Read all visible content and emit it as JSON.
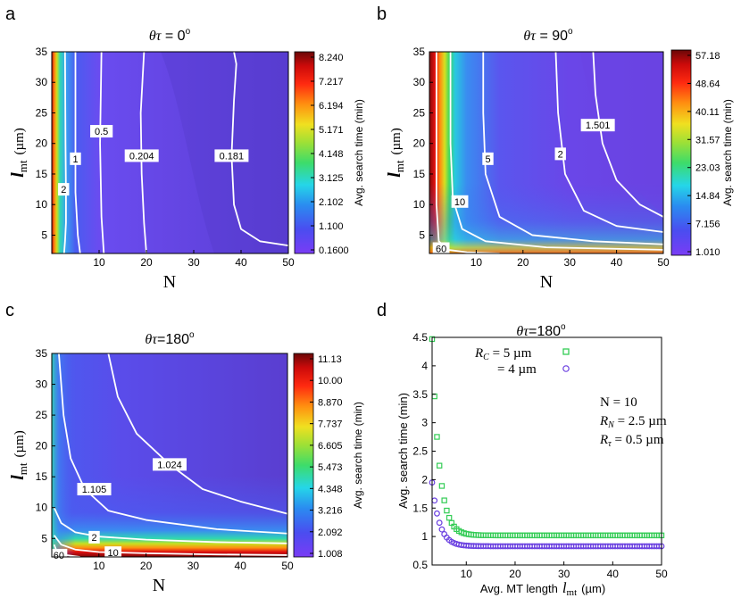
{
  "figure": {
    "panel_letters": [
      "a",
      "b",
      "c",
      "d"
    ]
  },
  "chart_data": [
    {
      "type": "heatmap",
      "panel": "a",
      "title_symbol": "θτ",
      "title_value": " = 0",
      "degree_mark": "o",
      "xlabel": "N",
      "ylabel_symbol": "l",
      "ylabel_sub": "mt",
      "ylabel_unit": "(µm)",
      "xlim": [
        0,
        50
      ],
      "ylim": [
        2,
        35
      ],
      "xticks": [
        "10",
        "20",
        "30",
        "40",
        "50"
      ],
      "yticks": [
        "5",
        "10",
        "15",
        "20",
        "25",
        "30",
        "35"
      ],
      "colorbar_label": "Avg. search time (min)",
      "colorbar_ticks": [
        "8.240",
        "7.217",
        "6.194",
        "5.171",
        "4.148",
        "3.125",
        "2.102",
        "1.100",
        "0.1600"
      ],
      "contours": [
        {
          "label": "2",
          "label_at": [
            2.5,
            12.5
          ],
          "points": [
            [
              2.6,
              2
            ],
            [
              2.8,
              4
            ],
            [
              3,
              7
            ],
            [
              3,
              12
            ],
            [
              2.9,
              20
            ],
            [
              2.8,
              35
            ]
          ]
        },
        {
          "label": "1",
          "label_at": [
            5,
            17.5
          ],
          "points": [
            [
              6,
              2
            ],
            [
              5.5,
              5
            ],
            [
              5,
              12
            ],
            [
              5,
              25
            ],
            [
              5,
              35
            ]
          ]
        },
        {
          "label": "0.5",
          "label_at": [
            10.5,
            22
          ],
          "points": [
            [
              11,
              2
            ],
            [
              10.5,
              8
            ],
            [
              10.2,
              20
            ],
            [
              10.5,
              35
            ]
          ]
        },
        {
          "label": "0.204",
          "label_at": [
            19,
            18
          ],
          "points": [
            [
              20,
              2
            ],
            [
              19.5,
              7
            ],
            [
              19,
              15
            ],
            [
              18.8,
              25
            ],
            [
              19.5,
              35
            ]
          ]
        },
        {
          "label": "0.181",
          "label_at": [
            38,
            18
          ],
          "points": [
            [
              50,
              3.3
            ],
            [
              44,
              4
            ],
            [
              40,
              6
            ],
            [
              38.5,
              10
            ],
            [
              38,
              18
            ],
            [
              38.5,
              27
            ],
            [
              39,
              33
            ],
            [
              38.5,
              35
            ]
          ]
        }
      ]
    },
    {
      "type": "heatmap",
      "panel": "b",
      "title_symbol": "θτ",
      "title_value": " = 90",
      "degree_mark": "o",
      "xlabel": "N",
      "ylabel_symbol": "l",
      "ylabel_sub": "mt",
      "ylabel_unit": "(µm)",
      "xlim": [
        0,
        50
      ],
      "ylim": [
        2,
        35
      ],
      "xticks": [
        "10",
        "20",
        "30",
        "40",
        "50"
      ],
      "yticks": [
        "5",
        "10",
        "15",
        "20",
        "25",
        "30",
        "35"
      ],
      "colorbar_label": "Avg. search time (min)",
      "colorbar_ticks": [
        "57.18",
        "48.64",
        "40.11",
        "31.57",
        "23.03",
        "14.84",
        "7.156",
        "1.010"
      ],
      "contours": [
        {
          "label": "60",
          "label_at": [
            2.5,
            2.8
          ],
          "points": [
            [
              1.5,
              35
            ],
            [
              1.5,
              10
            ],
            [
              2,
              4
            ],
            [
              4,
              2.6
            ],
            [
              8,
              2.2
            ],
            [
              15,
              2
            ]
          ]
        },
        {
          "label": "10",
          "label_at": [
            6.5,
            10.5
          ],
          "points": [
            [
              4.5,
              35
            ],
            [
              4.5,
              20
            ],
            [
              5,
              11
            ],
            [
              7,
              6
            ],
            [
              12,
              4
            ],
            [
              25,
              3
            ],
            [
              50,
              2.6
            ]
          ]
        },
        {
          "label": "5",
          "label_at": [
            12.5,
            17.5
          ],
          "points": [
            [
              11.5,
              35
            ],
            [
              11.5,
              25
            ],
            [
              12,
              15
            ],
            [
              15,
              8
            ],
            [
              22,
              5
            ],
            [
              35,
              4
            ],
            [
              50,
              3.5
            ]
          ]
        },
        {
          "label": "2",
          "label_at": [
            28,
            18.3
          ],
          "points": [
            [
              27,
              35
            ],
            [
              27.5,
              25
            ],
            [
              29,
              15
            ],
            [
              33,
              9
            ],
            [
              40,
              6.5
            ],
            [
              50,
              5.5
            ]
          ]
        },
        {
          "label": "1.501",
          "label_at": [
            36,
            23
          ],
          "points": [
            [
              35,
              35
            ],
            [
              35.5,
              28
            ],
            [
              37,
              20
            ],
            [
              40,
              14
            ],
            [
              45,
              10
            ],
            [
              50,
              8
            ]
          ]
        }
      ]
    },
    {
      "type": "heatmap",
      "panel": "c",
      "title_symbol": "θτ",
      "title_value": "=180",
      "degree_mark": "o",
      "xlabel": "N",
      "ylabel_symbol": "l",
      "ylabel_sub": "mt",
      "ylabel_unit": "(µm)",
      "xlim": [
        0,
        50
      ],
      "ylim": [
        2,
        35
      ],
      "xticks": [
        "10",
        "20",
        "30",
        "40",
        "50"
      ],
      "yticks": [
        "5",
        "10",
        "15",
        "20",
        "25",
        "30",
        "35"
      ],
      "colorbar_label": "Avg. search time (min)",
      "colorbar_ticks": [
        "11.13",
        "10.00",
        "8.870",
        "7.737",
        "6.605",
        "5.473",
        "4.348",
        "3.216",
        "2.092",
        "1.008"
      ],
      "contours": [
        {
          "label": "60",
          "label_at": [
            1.5,
            2.3
          ],
          "points": [
            [
              0.5,
              4
            ],
            [
              1,
              3
            ],
            [
              3,
              2.3
            ],
            [
              6,
              2
            ]
          ]
        },
        {
          "label": "10",
          "label_at": [
            13,
            2.7
          ],
          "points": [
            [
              0.5,
              5.5
            ],
            [
              2,
              4
            ],
            [
              5,
              3.2
            ],
            [
              10,
              2.8
            ],
            [
              20,
              2.6
            ],
            [
              35,
              2.4
            ],
            [
              50,
              2.3
            ]
          ]
        },
        {
          "label": "2",
          "label_at": [
            9,
            5.2
          ],
          "points": [
            [
              0.5,
              10
            ],
            [
              2,
              7.5
            ],
            [
              5,
              6
            ],
            [
              10,
              5.3
            ],
            [
              20,
              4.8
            ],
            [
              35,
              4.4
            ],
            [
              50,
              4.2
            ]
          ]
        },
        {
          "label": "1.105",
          "label_at": [
            9,
            13
          ],
          "points": [
            [
              1.5,
              35
            ],
            [
              2.5,
              25
            ],
            [
              4,
              18
            ],
            [
              7,
              13
            ],
            [
              12,
              9.5
            ],
            [
              20,
              8
            ],
            [
              35,
              6.5
            ],
            [
              50,
              5.8
            ]
          ]
        },
        {
          "label": "1.024",
          "label_at": [
            25,
            17
          ],
          "points": [
            [
              12,
              35
            ],
            [
              14,
              28
            ],
            [
              18,
              22
            ],
            [
              25,
              17
            ],
            [
              32,
              13
            ],
            [
              40,
              11
            ],
            [
              50,
              9
            ]
          ]
        }
      ]
    },
    {
      "type": "scatter",
      "panel": "d",
      "title_symbol": "θτ",
      "title_value": "=180",
      "degree_mark": "o",
      "xlabel": "Avg. MT length",
      "xlabel_symbol": "l",
      "xlabel_sub": "mt",
      "xlabel_unit": "(µm)",
      "ylabel": "Avg. search time (min)",
      "xlim": [
        3,
        50
      ],
      "ylim": [
        0.5,
        4.5
      ],
      "xticks": [
        "10",
        "20",
        "30",
        "40",
        "50"
      ],
      "yticks": [
        "0.5",
        "1",
        "1.5",
        "2",
        "2.5",
        "3",
        "3.5",
        "4",
        "4.5"
      ],
      "legend_position": "top-left",
      "series": [
        {
          "name": "RC = 5 µm",
          "legend_symbol": "R",
          "legend_sub": "C",
          "legend_rest": " = 5 µm",
          "marker": "square",
          "color": "#33cc55",
          "x": [],
          "y": []
        },
        {
          "name": "= 4 µm",
          "legend_rest": "= 4 µm",
          "marker": "circle",
          "color": "#6a3fe0",
          "x": [],
          "y": []
        }
      ],
      "annotations": [
        {
          "symbol": "",
          "sub": "",
          "text": "N = 10"
        },
        {
          "symbol": "R",
          "sub": "N",
          "text": " = 2.5 µm"
        },
        {
          "symbol": "R",
          "sub": "τ",
          "text": " = 0.5 µm"
        }
      ]
    }
  ]
}
